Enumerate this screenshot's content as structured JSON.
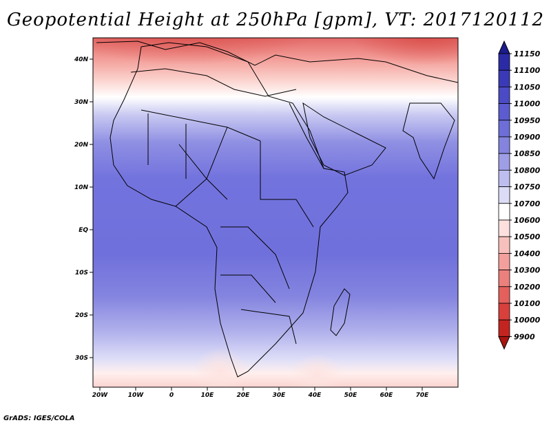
{
  "title": "Geopotential Height at 250hPa [gpm], VT: 2017120112",
  "credit": "GrADS: IGES/COLA",
  "lat_labels": [
    "40N",
    "30N",
    "20N",
    "10N",
    "EQ",
    "10S",
    "20S",
    "30S"
  ],
  "lon_labels": [
    "20W",
    "10W",
    "0",
    "10E",
    "20E",
    "30E",
    "40E",
    "50E",
    "60E",
    "70E"
  ],
  "colorbar": {
    "levels": [
      "11150",
      "11100",
      "11050",
      "11000",
      "10950",
      "10900",
      "10850",
      "10800",
      "10750",
      "10700",
      "10600",
      "10500",
      "10400",
      "10300",
      "10200",
      "10100",
      "10000",
      "9900"
    ],
    "colors": [
      "#1c1c8c",
      "#2b2ba6",
      "#3a3ab8",
      "#4b4bc6",
      "#5c5cd0",
      "#6e6ed8",
      "#8484df",
      "#9e9ee7",
      "#bdbdf0",
      "#dcdcf7",
      "#ffffff",
      "#fde0de",
      "#f8c0bc",
      "#f3a09c",
      "#ec807c",
      "#e4605c",
      "#d8403c",
      "#c42420",
      "#a81410"
    ]
  }
}
